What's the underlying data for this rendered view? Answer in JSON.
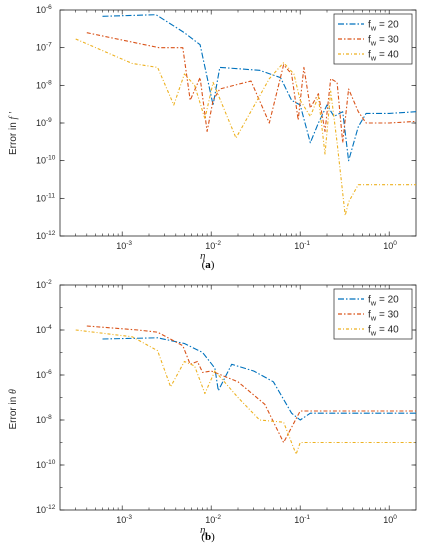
{
  "chart_data": [
    {
      "type": "line",
      "panel_label": "a",
      "xlabel": "η",
      "ylabel_text": "Error in",
      "ylabel_symbol": "f ′",
      "xscale": "log",
      "yscale": "log",
      "xlim": [
        0.0002,
        2
      ],
      "ylim": [
        1e-12,
        1e-06
      ],
      "x_ticks": [
        {
          "v": 0.001,
          "m": "10",
          "e": "-3"
        },
        {
          "v": 0.01,
          "m": "10",
          "e": "-2"
        },
        {
          "v": 0.1,
          "m": "10",
          "e": "-1"
        },
        {
          "v": 1,
          "m": "10",
          "e": "0"
        }
      ],
      "y_ticks": [
        {
          "v": 1e-12,
          "m": "10",
          "e": "-12"
        },
        {
          "v": 1e-11,
          "m": "10",
          "e": "-11"
        },
        {
          "v": 1e-10,
          "m": "10",
          "e": "-10"
        },
        {
          "v": 1e-09,
          "m": "10",
          "e": "-9"
        },
        {
          "v": 1e-08,
          "m": "10",
          "e": "-8"
        },
        {
          "v": 1e-07,
          "m": "10",
          "e": "-7"
        },
        {
          "v": 1e-06,
          "m": "10",
          "e": "-6"
        }
      ],
      "legend_position": "top-right",
      "series": [
        {
          "name": "f_w = 20",
          "name_main": "f",
          "name_sub": "w",
          "name_rest": " = 20",
          "color": "#0072bd",
          "x": [
            0.0006,
            0.0024,
            0.005,
            0.0075,
            0.0105,
            0.0125,
            0.035,
            0.06,
            0.08,
            0.1,
            0.13,
            0.16,
            0.2,
            0.24,
            0.3,
            0.35,
            0.45,
            0.55,
            1,
            2
          ],
          "y": [
            6.8e-07,
            7.5e-07,
            2.5e-07,
            1.2e-07,
            3e-09,
            3e-08,
            2.5e-08,
            1.6e-08,
            4e-09,
            3e-09,
            3e-10,
            1e-09,
            3e-09,
            1.5e-09,
            2e-09,
            1e-10,
            8e-10,
            1.8e-09,
            1.8e-09,
            2e-09
          ]
        },
        {
          "name": "f_w = 30",
          "name_main": "f",
          "name_sub": "w",
          "name_rest": " = 30",
          "color": "#d95319",
          "x": [
            0.0004,
            0.0026,
            0.0048,
            0.0058,
            0.0075,
            0.009,
            0.0105,
            0.0125,
            0.028,
            0.045,
            0.065,
            0.08,
            0.095,
            0.11,
            0.13,
            0.16,
            0.19,
            0.22,
            0.26,
            0.3,
            0.35,
            0.45,
            0.55,
            1,
            2
          ],
          "y": [
            2.5e-07,
            1e-07,
            1e-07,
            4e-09,
            1.6e-08,
            6e-10,
            4e-09,
            8e-09,
            1.3e-08,
            1e-09,
            3.5e-08,
            2e-08,
            1.2e-09,
            3e-08,
            2.5e-09,
            6e-09,
            6e-10,
            1.5e-08,
            1.2e-08,
            3e-10,
            8e-09,
            2e-09,
            1e-09,
            1e-09,
            1.1e-09
          ]
        },
        {
          "name": "f_w = 40",
          "name_main": "f",
          "name_sub": "w",
          "name_rest": " = 40",
          "color": "#edb120",
          "x": [
            0.0003,
            0.0013,
            0.0025,
            0.0038,
            0.005,
            0.0065,
            0.0085,
            0.0105,
            0.019,
            0.045,
            0.065,
            0.085,
            0.1,
            0.13,
            0.16,
            0.19,
            0.22,
            0.26,
            0.32,
            0.35,
            0.45,
            0.55,
            1,
            2
          ],
          "y": [
            1.7e-07,
            3.8e-08,
            3e-08,
            3e-09,
            2e-08,
            1e-08,
            1.3e-09,
            1.2e-08,
            4e-10,
            1.5e-08,
            4e-08,
            2e-08,
            4e-09,
            1.5e-09,
            5e-09,
            1.5e-10,
            7e-09,
            3e-10,
            3.5e-12,
            8e-12,
            2.3e-11,
            2.3e-11,
            2.3e-11,
            2.3e-11
          ]
        }
      ]
    },
    {
      "type": "line",
      "panel_label": "b",
      "xlabel": "η",
      "ylabel_text": "Error in",
      "ylabel_symbol": "θ",
      "xscale": "log",
      "yscale": "log",
      "xlim": [
        0.0002,
        2
      ],
      "ylim": [
        1e-12,
        0.01
      ],
      "x_ticks": [
        {
          "v": 0.001,
          "m": "10",
          "e": "-3"
        },
        {
          "v": 0.01,
          "m": "10",
          "e": "-2"
        },
        {
          "v": 0.1,
          "m": "10",
          "e": "-1"
        },
        {
          "v": 1,
          "m": "10",
          "e": "0"
        }
      ],
      "y_ticks": [
        {
          "v": 1e-12,
          "m": "10",
          "e": "-12"
        },
        {
          "v": 1e-10,
          "m": "10",
          "e": "-10"
        },
        {
          "v": 1e-08,
          "m": "10",
          "e": "-8"
        },
        {
          "v": 1e-06,
          "m": "10",
          "e": "-6"
        },
        {
          "v": 0.0001,
          "m": "10",
          "e": "-4"
        },
        {
          "v": 0.01,
          "m": "10",
          "e": "-2"
        }
      ],
      "legend_position": "top-right",
      "series": [
        {
          "name": "f_w = 20",
          "name_main": "f",
          "name_sub": "w",
          "name_rest": " = 20",
          "color": "#0072bd",
          "x": [
            0.0006,
            0.0025,
            0.005,
            0.008,
            0.011,
            0.012,
            0.017,
            0.03,
            0.05,
            0.08,
            0.1,
            0.13,
            0.2,
            0.5,
            1,
            2
          ],
          "y": [
            4e-05,
            4.5e-05,
            2.5e-05,
            1e-05,
            2e-06,
            2e-07,
            3e-06,
            1.5e-06,
            5e-07,
            2e-08,
            1e-08,
            2e-08,
            2e-08,
            2e-08,
            2e-08,
            2e-08
          ]
        },
        {
          "name": "f_w = 30",
          "name_main": "f",
          "name_sub": "w",
          "name_rest": " = 30",
          "color": "#d95319",
          "x": [
            0.0004,
            0.0015,
            0.0025,
            0.0048,
            0.0058,
            0.007,
            0.008,
            0.01,
            0.02,
            0.04,
            0.065,
            0.1,
            0.15,
            0.3,
            1,
            2
          ],
          "y": [
            0.00015,
            0.0001,
            8e-05,
            2e-05,
            3e-06,
            4e-06,
            1.3e-06,
            1.5e-06,
            5e-07,
            5e-08,
            1e-09,
            2.5e-08,
            2.5e-08,
            2.5e-08,
            2.5e-08,
            2.5e-08
          ]
        },
        {
          "name": "f_w = 40",
          "name_main": "f",
          "name_sub": "w",
          "name_rest": " = 40",
          "color": "#edb120",
          "x": [
            0.0003,
            0.0013,
            0.0025,
            0.0035,
            0.005,
            0.0065,
            0.0085,
            0.011,
            0.02,
            0.035,
            0.065,
            0.09,
            0.1,
            0.2,
            1,
            2
          ],
          "y": [
            0.0001,
            5e-05,
            1.2e-05,
            3e-07,
            4e-06,
            2.5e-06,
            1.5e-07,
            1.5e-06,
            1e-07,
            1e-08,
            8e-09,
            3e-10,
            1e-09,
            1e-09,
            1e-09,
            1e-09
          ]
        }
      ]
    }
  ]
}
